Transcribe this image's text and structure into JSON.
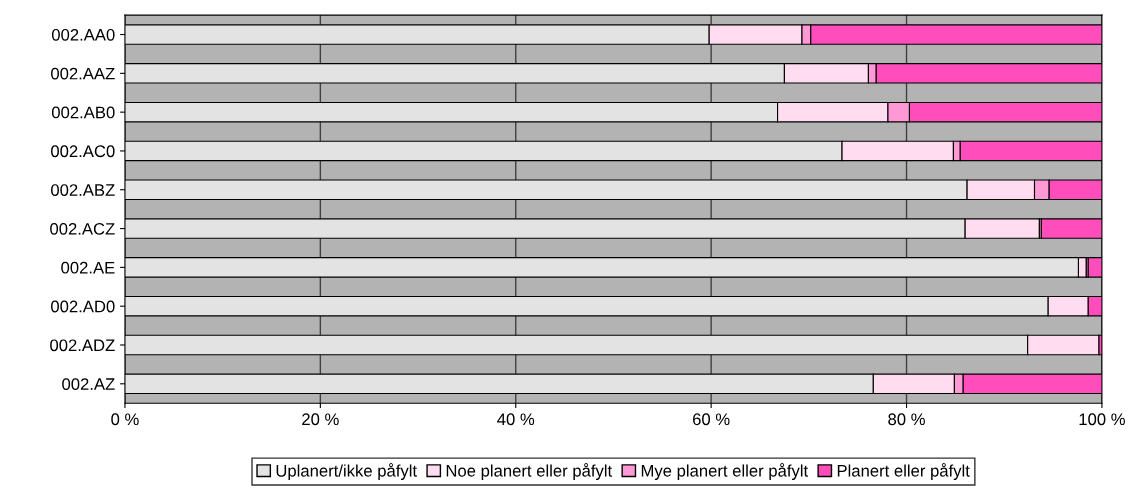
{
  "chart_data": {
    "type": "bar",
    "orientation": "horizontal",
    "stacked": true,
    "categories": [
      "002.AA0",
      "002.AAZ",
      "002.AB0",
      "002.AC0",
      "002.ABZ",
      "002.ACZ",
      "002.AE",
      "002.AD0",
      "002.ADZ",
      "002.AZ"
    ],
    "series": [
      {
        "name": "Uplanert/ikke påfylt",
        "color": "#e3e3e3",
        "values": [
          59.8,
          67.5,
          66.8,
          73.4,
          86.2,
          86.0,
          97.6,
          94.5,
          92.4,
          76.6
        ]
      },
      {
        "name": "Noe planert eller påfylt",
        "color": "#ffdcf0",
        "values": [
          9.5,
          8.6,
          11.3,
          11.4,
          6.9,
          7.6,
          0.8,
          4.1,
          7.3,
          8.3
        ]
      },
      {
        "name": "Mye planert eller påfylt",
        "color": "#ff99d6",
        "values": [
          0.9,
          0.8,
          2.2,
          0.7,
          1.5,
          0.2,
          0.2,
          null,
          null,
          0.9
        ]
      },
      {
        "name": "Planert eller påfylt",
        "color": "#ff4dbb",
        "values": [
          29.8,
          23.1,
          19.7,
          14.5,
          5.4,
          6.2,
          1.4,
          1.4,
          0.3,
          14.2
        ]
      }
    ],
    "xlim": [
      0,
      100
    ],
    "xticks": [
      {
        "value": 0,
        "label": "0 %"
      },
      {
        "value": 20,
        "label": "20 %"
      },
      {
        "value": 40,
        "label": "40 %"
      },
      {
        "value": 60,
        "label": "60 %"
      },
      {
        "value": 80,
        "label": "80 %"
      },
      {
        "value": 100,
        "label": "100 %"
      }
    ],
    "grid": "x",
    "legend": "bottom"
  }
}
